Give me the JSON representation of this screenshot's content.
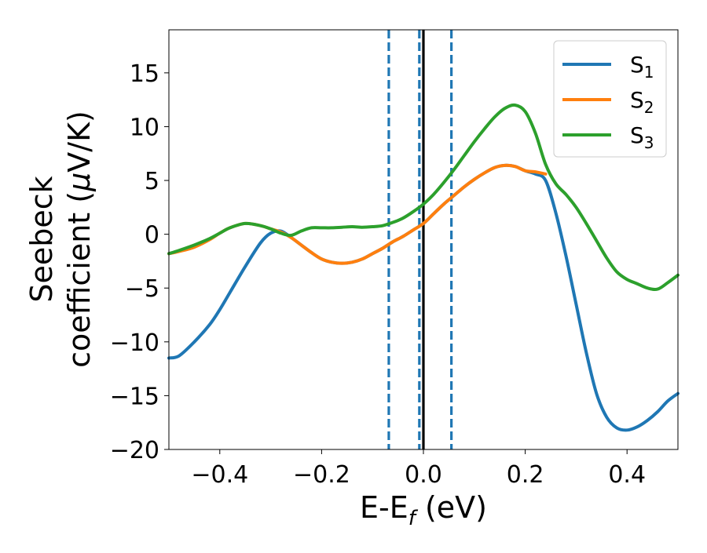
{
  "chart_data": {
    "type": "line",
    "xlabel": "E-E",
    "xlabel_sub": "f",
    "xlabel_unit": " (eV)",
    "ylabel_line1": "Seebeck",
    "ylabel_line2_pre": "coefficient  (",
    "ylabel_mu": "μ",
    "ylabel_line2_post": "V/K)",
    "xlim": [
      -0.5,
      0.5
    ],
    "ylim": [
      -20,
      19
    ],
    "xticks": [
      -0.4,
      -0.2,
      0.0,
      0.2,
      0.4
    ],
    "xtick_labels": [
      "−0.4",
      "−0.2",
      "0.0",
      "0.2",
      "0.4"
    ],
    "yticks": [
      -20,
      -15,
      -10,
      -5,
      0,
      5,
      10,
      15
    ],
    "ytick_labels": [
      "−20",
      "−15",
      "−10",
      "−5",
      "0",
      "5",
      "10",
      "15"
    ],
    "legend_position": "top-right",
    "vlines": [
      {
        "x": -0.068,
        "style": "dashed",
        "color": "#1f77b4"
      },
      {
        "x": -0.008,
        "style": "dashed",
        "color": "#1f77b4"
      },
      {
        "x": 0.055,
        "style": "dashed",
        "color": "#1f77b4"
      },
      {
        "x": 0.0,
        "style": "solid",
        "color": "#000000"
      }
    ],
    "series": [
      {
        "name": "S",
        "name_sub": "1",
        "color": "#1f77b4",
        "x": [
          -0.5,
          -0.48,
          -0.45,
          -0.42,
          -0.4,
          -0.38,
          -0.35,
          -0.32,
          -0.3,
          -0.28,
          -0.26,
          -0.24,
          -0.22,
          -0.2,
          -0.18,
          -0.16,
          -0.14,
          -0.12,
          -0.1,
          -0.08,
          -0.06,
          -0.04,
          -0.02,
          0.0,
          0.02,
          0.04,
          0.06,
          0.08,
          0.1,
          0.12,
          0.14,
          0.16,
          0.18,
          0.2,
          0.22,
          0.24,
          0.26,
          0.28,
          0.3,
          0.32,
          0.34,
          0.36,
          0.38,
          0.4,
          0.42,
          0.44,
          0.46,
          0.48,
          0.5
        ],
        "y": [
          -11.5,
          -11.3,
          -10.0,
          -8.4,
          -7.0,
          -5.4,
          -3.0,
          -0.8,
          0.1,
          0.3,
          -0.3,
          -1.0,
          -1.7,
          -2.3,
          -2.6,
          -2.7,
          -2.6,
          -2.3,
          -1.8,
          -1.3,
          -0.7,
          -0.2,
          0.4,
          1.0,
          1.9,
          2.8,
          3.6,
          4.4,
          5.1,
          5.7,
          6.2,
          6.4,
          6.3,
          5.9,
          5.6,
          5.0,
          2.0,
          -2.0,
          -6.5,
          -11.0,
          -14.8,
          -17.0,
          -18.0,
          -18.2,
          -17.9,
          -17.3,
          -16.5,
          -15.5,
          -14.8
        ]
      },
      {
        "name": "S",
        "name_sub": "2",
        "color": "#ff7f0e",
        "x": [
          -0.5,
          -0.48,
          -0.45,
          -0.42,
          -0.4,
          -0.38,
          -0.35,
          -0.32,
          -0.3,
          -0.28,
          -0.26,
          -0.24,
          -0.22,
          -0.2,
          -0.18,
          -0.16,
          -0.14,
          -0.12,
          -0.1,
          -0.08,
          -0.06,
          -0.04,
          -0.02,
          0.0,
          0.02,
          0.04,
          0.06,
          0.08,
          0.1,
          0.12,
          0.14,
          0.16,
          0.18,
          0.2,
          0.22,
          0.24
        ],
        "y": [
          -1.8,
          -1.6,
          -1.2,
          -0.5,
          0.1,
          0.6,
          1.0,
          0.8,
          0.5,
          0.2,
          -0.3,
          -1.0,
          -1.7,
          -2.3,
          -2.6,
          -2.7,
          -2.6,
          -2.3,
          -1.8,
          -1.3,
          -0.7,
          -0.2,
          0.4,
          1.0,
          1.9,
          2.8,
          3.6,
          4.4,
          5.1,
          5.7,
          6.2,
          6.4,
          6.3,
          5.9,
          5.8,
          5.6
        ]
      },
      {
        "name": "S",
        "name_sub": "3",
        "color": "#2ca02c",
        "x": [
          -0.5,
          -0.48,
          -0.45,
          -0.42,
          -0.4,
          -0.38,
          -0.35,
          -0.32,
          -0.3,
          -0.28,
          -0.26,
          -0.24,
          -0.22,
          -0.2,
          -0.18,
          -0.16,
          -0.14,
          -0.12,
          -0.1,
          -0.08,
          -0.06,
          -0.04,
          -0.02,
          0.0,
          0.02,
          0.04,
          0.06,
          0.08,
          0.1,
          0.12,
          0.14,
          0.16,
          0.18,
          0.2,
          0.22,
          0.24,
          0.26,
          0.28,
          0.3,
          0.32,
          0.34,
          0.36,
          0.38,
          0.4,
          0.42,
          0.44,
          0.46,
          0.48,
          0.5
        ],
        "y": [
          -1.8,
          -1.5,
          -1.0,
          -0.4,
          0.1,
          0.6,
          1.0,
          0.8,
          0.5,
          0.1,
          -0.1,
          0.3,
          0.6,
          0.6,
          0.6,
          0.65,
          0.7,
          0.65,
          0.7,
          0.8,
          1.1,
          1.5,
          2.1,
          2.8,
          3.7,
          4.8,
          6.0,
          7.3,
          8.6,
          9.8,
          10.9,
          11.7,
          12.0,
          11.4,
          9.4,
          6.5,
          4.7,
          3.7,
          2.5,
          1.0,
          -0.6,
          -2.2,
          -3.5,
          -4.2,
          -4.6,
          -5.0,
          -5.1,
          -4.5,
          -3.8
        ]
      }
    ]
  }
}
